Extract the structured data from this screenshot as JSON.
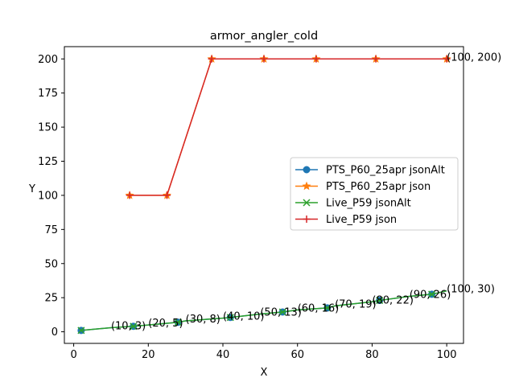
{
  "chart_data": {
    "type": "line",
    "title": "armor_angler_cold",
    "xlabel": "X",
    "ylabel": "Y",
    "xlim": [
      -2.5,
      104.5
    ],
    "ylim": [
      -8.5,
      209
    ],
    "xticks": [
      0,
      20,
      40,
      60,
      80,
      100
    ],
    "yticks": [
      0,
      25,
      50,
      75,
      100,
      125,
      150,
      175,
      200
    ],
    "grid": false,
    "legend_position": "center-right",
    "series": [
      {
        "name": "PTS_P60_25apr jsonAlt",
        "color": "#1f77b4",
        "marker": "circle",
        "x": [
          2,
          10,
          16,
          20,
          28,
          30,
          40,
          42,
          50,
          56,
          60,
          68,
          70,
          80,
          82,
          90,
          96,
          100
        ],
        "y": [
          1,
          3,
          4,
          5,
          7,
          8,
          10,
          10.5,
          13,
          14.5,
          16,
          17.5,
          19,
          22,
          23,
          26,
          27.5,
          30
        ],
        "marker_x": [
          2,
          16,
          28,
          42,
          56,
          68,
          82,
          96
        ],
        "marker_y": [
          1,
          4,
          7,
          10.5,
          14.5,
          17.5,
          23,
          27.5
        ]
      },
      {
        "name": "PTS_P60_25apr json",
        "color": "#ff7f0e",
        "marker": "star",
        "x": [
          15,
          25,
          37,
          51,
          65,
          81,
          100
        ],
        "y": [
          100,
          100,
          200,
          200,
          200,
          200,
          200
        ]
      },
      {
        "name": "Live_P59 jsonAlt",
        "color": "#2ca02c",
        "marker": "x",
        "x": [
          2,
          10,
          16,
          20,
          28,
          30,
          40,
          42,
          50,
          56,
          60,
          68,
          70,
          80,
          82,
          90,
          96,
          100
        ],
        "y": [
          1,
          3,
          4,
          5,
          7,
          8,
          10,
          10.5,
          13,
          14.5,
          16,
          17.5,
          19,
          22,
          23,
          26,
          27.5,
          30
        ],
        "marker_x": [
          2,
          16,
          28,
          42,
          56,
          68,
          82,
          96
        ],
        "marker_y": [
          1,
          4,
          7,
          10.5,
          14.5,
          17.5,
          23,
          27.5
        ]
      },
      {
        "name": "Live_P59 json",
        "color": "#d62728",
        "marker": "plus",
        "x": [
          15,
          25,
          37,
          51,
          65,
          81,
          100
        ],
        "y": [
          100,
          100,
          200,
          200,
          200,
          200,
          200
        ]
      }
    ],
    "annotations": [
      {
        "text": "(10, 3)",
        "x": 10,
        "y": 3
      },
      {
        "text": "(20, 5)",
        "x": 20,
        "y": 5
      },
      {
        "text": "(30, 8)",
        "x": 30,
        "y": 8
      },
      {
        "text": "(40, 10)",
        "x": 40,
        "y": 10
      },
      {
        "text": "(50, 13)",
        "x": 50,
        "y": 13
      },
      {
        "text": "(60, 16)",
        "x": 60,
        "y": 16
      },
      {
        "text": "(70, 19)",
        "x": 70,
        "y": 19
      },
      {
        "text": "(80, 22)",
        "x": 80,
        "y": 22
      },
      {
        "text": "(90, 26)",
        "x": 90,
        "y": 26
      },
      {
        "text": "(100, 30)",
        "x": 100,
        "y": 30
      },
      {
        "text": "(100, 200)",
        "x": 100,
        "y": 200
      }
    ]
  }
}
